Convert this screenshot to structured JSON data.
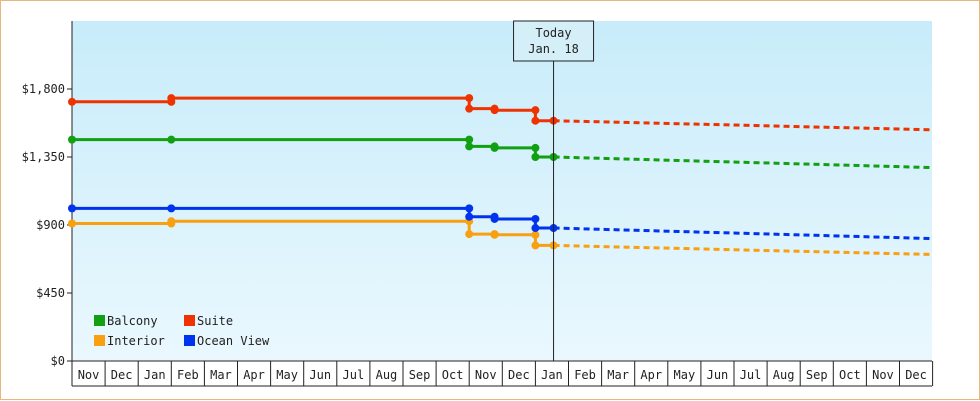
{
  "chart_data": {
    "type": "line",
    "step": true,
    "x_unit": "month",
    "x_start": "2016-11",
    "ylim": [
      0,
      2250
    ],
    "y_ticks": [
      0,
      450,
      900,
      1350,
      1800
    ],
    "y_tick_labels": [
      "$0",
      "$450",
      "$900",
      "$1,350",
      "$1,800"
    ],
    "month_labels": [
      "Nov",
      "Dec",
      "Jan",
      "Feb",
      "Mar",
      "Apr",
      "May",
      "Jun",
      "Jul",
      "Aug",
      "Sep",
      "Oct",
      "Nov",
      "Dec",
      "Jan",
      "Feb",
      "Mar",
      "Apr",
      "May",
      "Jun",
      "Jul",
      "Aug",
      "Sep",
      "Oct",
      "Nov",
      "Dec"
    ],
    "today": {
      "line1": "Today",
      "line2": "Jan. 18",
      "x": "2018-01-18"
    },
    "colors": {
      "Balcony": "#11a011",
      "Suite": "#ee3300",
      "Interior": "#f8a010",
      "Ocean View": "#0033ee"
    },
    "grid": false,
    "legend_position": "bottom-left",
    "series": [
      {
        "name": "Balcony",
        "history": [
          [
            "2016-11-01",
            1465
          ],
          [
            "2017-02-01",
            1465
          ],
          [
            "2017-11-01",
            1465
          ],
          [
            "2017-11-01",
            1420
          ],
          [
            "2017-11-24",
            1420
          ],
          [
            "2017-11-24",
            1410
          ],
          [
            "2018-01-01",
            1410
          ],
          [
            "2018-01-01",
            1350
          ],
          [
            "2018-01-18",
            1350
          ]
        ],
        "forecast": [
          [
            "2018-01-18",
            1350
          ],
          [
            "2019-01-01",
            1280
          ]
        ]
      },
      {
        "name": "Suite",
        "history": [
          [
            "2016-11-01",
            1715
          ],
          [
            "2017-02-01",
            1715
          ],
          [
            "2017-02-01",
            1740
          ],
          [
            "2017-11-01",
            1740
          ],
          [
            "2017-11-01",
            1670
          ],
          [
            "2017-11-24",
            1670
          ],
          [
            "2017-11-24",
            1660
          ],
          [
            "2018-01-01",
            1660
          ],
          [
            "2018-01-01",
            1590
          ],
          [
            "2018-01-18",
            1590
          ]
        ],
        "forecast": [
          [
            "2018-01-18",
            1590
          ],
          [
            "2019-01-01",
            1530
          ]
        ]
      },
      {
        "name": "Interior",
        "history": [
          [
            "2016-11-01",
            910
          ],
          [
            "2017-02-01",
            910
          ],
          [
            "2017-02-01",
            925
          ],
          [
            "2017-11-01",
            925
          ],
          [
            "2017-11-01",
            840
          ],
          [
            "2017-11-24",
            840
          ],
          [
            "2017-11-24",
            835
          ],
          [
            "2018-01-01",
            835
          ],
          [
            "2018-01-01",
            765
          ],
          [
            "2018-01-18",
            765
          ]
        ],
        "forecast": [
          [
            "2018-01-18",
            765
          ],
          [
            "2019-01-01",
            705
          ]
        ]
      },
      {
        "name": "Ocean View",
        "history": [
          [
            "2016-11-01",
            1010
          ],
          [
            "2017-02-01",
            1010
          ],
          [
            "2017-11-01",
            1010
          ],
          [
            "2017-11-01",
            955
          ],
          [
            "2017-11-24",
            955
          ],
          [
            "2017-11-24",
            940
          ],
          [
            "2018-01-01",
            940
          ],
          [
            "2018-01-01",
            880
          ],
          [
            "2018-01-18",
            880
          ]
        ],
        "forecast": [
          [
            "2018-01-18",
            880
          ],
          [
            "2019-01-01",
            810
          ]
        ]
      }
    ],
    "legend": [
      [
        "Balcony",
        "Suite"
      ],
      [
        "Interior",
        "Ocean View"
      ]
    ]
  }
}
